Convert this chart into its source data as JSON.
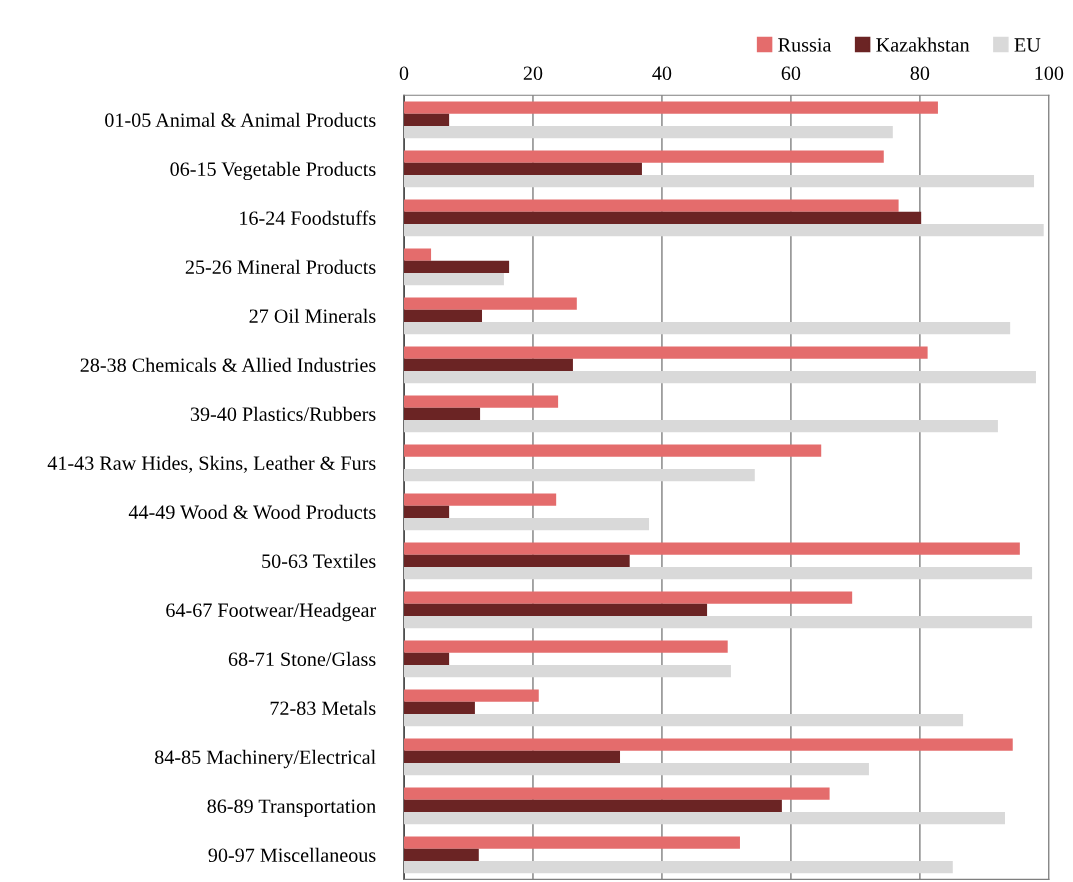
{
  "chart_data": {
    "type": "bar",
    "orientation": "horizontal",
    "categories": [
      "01-05 Animal & Animal Products",
      "06-15 Vegetable Products",
      "16-24 Foodstuffs",
      "25-26 Mineral Products",
      "27 Oil Minerals",
      "28-38 Chemicals & Allied Industries",
      "39-40 Plastics/Rubbers",
      "41-43 Raw Hides, Skins, Leather & Furs",
      "44-49 Wood & Wood Products",
      "50-63 Textiles",
      "64-67 Footwear/Headgear",
      "68-71 Stone/Glass",
      "72-83 Metals",
      "84-85 Machinery/Electrical",
      "86-89 Transportation",
      "90-97 Miscellaneous"
    ],
    "series": [
      {
        "name": "Russia",
        "color": "#e46c6c",
        "values": [
          82.8,
          74.4,
          76.7,
          4.2,
          26.8,
          81.2,
          23.9,
          64.7,
          23.6,
          95.5,
          69.5,
          50.2,
          20.9,
          94.4,
          66.0,
          52.1
        ]
      },
      {
        "name": "Kazakhstan",
        "color": "#6b2424",
        "values": [
          7.0,
          36.9,
          80.2,
          16.3,
          12.1,
          26.2,
          11.8,
          0,
          7.0,
          35.0,
          47.0,
          7.0,
          11.0,
          33.5,
          58.6,
          11.6
        ]
      },
      {
        "name": "EU",
        "color": "#d9d9d9",
        "values": [
          75.8,
          97.7,
          99.2,
          15.5,
          94.0,
          98.0,
          92.1,
          54.4,
          38.0,
          97.4,
          97.4,
          50.7,
          86.7,
          72.1,
          93.2,
          85.1
        ]
      }
    ],
    "xlim": [
      0,
      100
    ],
    "xticks": [
      0,
      20,
      40,
      60,
      80,
      100
    ],
    "grid": "x",
    "legend": "top right"
  }
}
